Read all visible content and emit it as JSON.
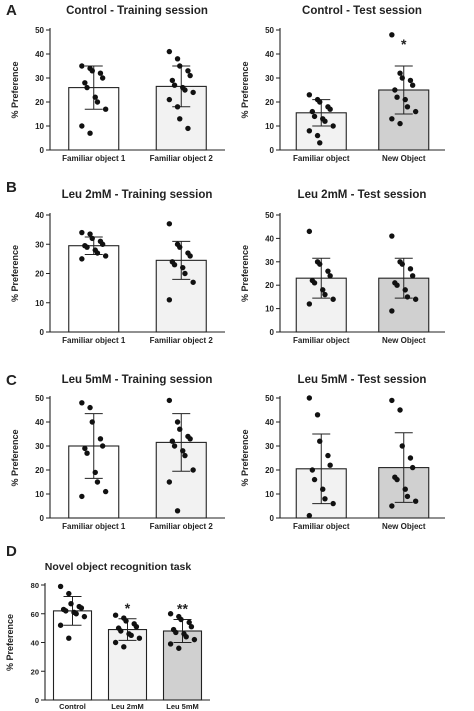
{
  "panel_letters": [
    "A",
    "B",
    "C",
    "D"
  ],
  "chart_data": [
    {
      "type": "bar",
      "panel": "A",
      "title": "Control - Training session",
      "ylabel": "% Preference",
      "ylim": [
        0,
        50
      ],
      "yticks": [
        0,
        10,
        20,
        30,
        40,
        50
      ],
      "categories": [
        "Familiar object 1",
        "Familiar object 2"
      ],
      "means": [
        26,
        26.5
      ],
      "sd": [
        9,
        8.5
      ],
      "bar_colors": [
        "#ffffff",
        "#f2f2f2"
      ],
      "points": [
        [
          35,
          34,
          33,
          32,
          30,
          28,
          26,
          22,
          20,
          17,
          10,
          7
        ],
        [
          41,
          38,
          35,
          33,
          31,
          29,
          27,
          26,
          25,
          24,
          21,
          18,
          13,
          9
        ]
      ],
      "annotations": [
        "",
        ""
      ]
    },
    {
      "type": "bar",
      "panel": "A",
      "title": "Control - Test session",
      "ylabel": "% Preference",
      "ylim": [
        0,
        50
      ],
      "yticks": [
        0,
        10,
        20,
        30,
        40,
        50
      ],
      "categories": [
        "Familiar object",
        "New Object"
      ],
      "means": [
        15.5,
        25
      ],
      "sd": [
        5.5,
        10
      ],
      "bar_colors": [
        "#f2f2f2",
        "#d0d0d0"
      ],
      "points": [
        [
          23,
          21,
          20,
          18,
          17,
          16,
          14,
          13,
          12,
          10,
          8,
          6,
          3
        ],
        [
          48,
          32,
          30,
          29,
          27,
          25,
          22,
          21,
          18,
          16,
          13,
          11
        ]
      ],
      "annotations": [
        "",
        "*"
      ]
    },
    {
      "type": "bar",
      "panel": "B",
      "title": "Leu 2mM - Training session",
      "ylabel": "% Preference",
      "ylim": [
        0,
        40
      ],
      "yticks": [
        0,
        10,
        20,
        30,
        40
      ],
      "categories": [
        "Familiar object 1",
        "Familiar object 2"
      ],
      "means": [
        29.5,
        24.5
      ],
      "sd": [
        3,
        6.5
      ],
      "bar_colors": [
        "#ffffff",
        "#f2f2f2"
      ],
      "points": [
        [
          34,
          33.5,
          32,
          31,
          30,
          29.5,
          29,
          28,
          27,
          26,
          25
        ],
        [
          37,
          30,
          29,
          27,
          26,
          24,
          23,
          22,
          20,
          17,
          11
        ]
      ],
      "annotations": [
        "",
        ""
      ]
    },
    {
      "type": "bar",
      "panel": "B",
      "title": "Leu 2mM - Test session",
      "ylabel": "% Preference",
      "ylim": [
        0,
        50
      ],
      "yticks": [
        0,
        10,
        20,
        30,
        40,
        50
      ],
      "categories": [
        "Familiar object",
        "New Object"
      ],
      "means": [
        23,
        23
      ],
      "sd": [
        8.5,
        8.5
      ],
      "bar_colors": [
        "#f2f2f2",
        "#d0d0d0"
      ],
      "points": [
        [
          43,
          30,
          29,
          26,
          24,
          22,
          21,
          18,
          16,
          14,
          12
        ],
        [
          41,
          30,
          29,
          27,
          24,
          21,
          20,
          18,
          15,
          14,
          9
        ]
      ],
      "annotations": [
        "",
        ""
      ]
    },
    {
      "type": "bar",
      "panel": "C",
      "title": "Leu 5mM - Training session",
      "ylabel": "% Preference",
      "ylim": [
        0,
        50
      ],
      "yticks": [
        0,
        10,
        20,
        30,
        40,
        50
      ],
      "categories": [
        "Familiar object 1",
        "Familiar object 2"
      ],
      "means": [
        30,
        31.5
      ],
      "sd": [
        13.5,
        12
      ],
      "bar_colors": [
        "#ffffff",
        "#f2f2f2"
      ],
      "points": [
        [
          48,
          46,
          40,
          33,
          30,
          29,
          27,
          19,
          15,
          11,
          9
        ],
        [
          49,
          40,
          37,
          34,
          33,
          32,
          30,
          28,
          26,
          20,
          15,
          3
        ]
      ],
      "annotations": [
        "",
        ""
      ]
    },
    {
      "type": "bar",
      "panel": "C",
      "title": "Leu 5mM - Test session",
      "ylabel": "% Preference",
      "ylim": [
        0,
        50
      ],
      "yticks": [
        0,
        10,
        20,
        30,
        40,
        50
      ],
      "categories": [
        "Familiar object",
        "New Object"
      ],
      "means": [
        20.5,
        21
      ],
      "sd": [
        14.5,
        14.5
      ],
      "bar_colors": [
        "#f2f2f2",
        "#d0d0d0"
      ],
      "points": [
        [
          50,
          43,
          32,
          26,
          22,
          20,
          16,
          12,
          8,
          6,
          1
        ],
        [
          49,
          45,
          30,
          25,
          21,
          17,
          16,
          12,
          9,
          7,
          5
        ]
      ],
      "annotations": [
        "",
        ""
      ]
    },
    {
      "type": "bar",
      "panel": "D",
      "title": "Novel object recognition task",
      "ylabel": "% Preference",
      "ylim": [
        0,
        80
      ],
      "yticks": [
        0,
        20,
        40,
        60,
        80
      ],
      "categories": [
        "Control",
        "Leu 2mM",
        "Leu 5mM"
      ],
      "means": [
        62,
        49,
        48
      ],
      "sd": [
        10,
        7.5,
        8
      ],
      "bar_colors": [
        "#ffffff",
        "#f2f2f2",
        "#d0d0d0"
      ],
      "points": [
        [
          79,
          74,
          67,
          65,
          64,
          63,
          62,
          61,
          60,
          58,
          52,
          43
        ],
        [
          59,
          57,
          55,
          53,
          51,
          50,
          48,
          46,
          45,
          43,
          40,
          37
        ],
        [
          60,
          58,
          56,
          54,
          51,
          49,
          47,
          46,
          44,
          42,
          39,
          36
        ]
      ],
      "annotations": [
        "",
        "*",
        "**"
      ]
    }
  ]
}
